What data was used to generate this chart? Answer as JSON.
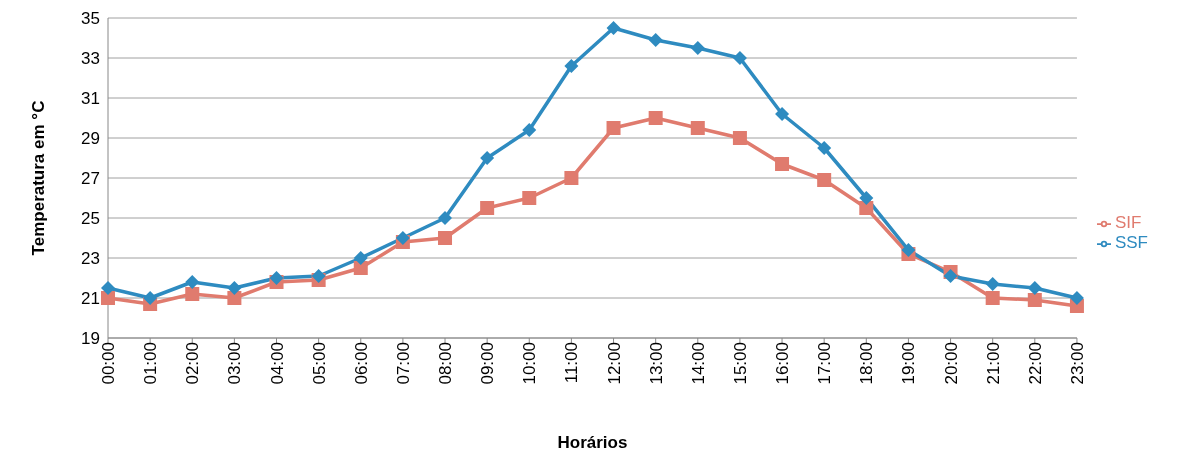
{
  "chart_data": {
    "type": "line",
    "ylabel": "Temperatura em °C",
    "xlabel": "Horários",
    "categories": [
      "00:00",
      "01:00",
      "02:00",
      "03:00",
      "04:00",
      "05:00",
      "06:00",
      "07:00",
      "08:00",
      "09:00",
      "10:00",
      "11:00",
      "12:00",
      "13:00",
      "14:00",
      "15:00",
      "16:00",
      "17:00",
      "18:00",
      "19:00",
      "20:00",
      "21:00",
      "22:00",
      "23:00"
    ],
    "series": [
      {
        "name": "SSF",
        "color": "#2e8bc0",
        "marker": "diamond",
        "values": [
          21.5,
          21.0,
          21.8,
          21.5,
          22.0,
          22.1,
          23.0,
          24.0,
          25.0,
          28.0,
          29.4,
          32.6,
          34.5,
          33.9,
          33.5,
          33.0,
          30.2,
          28.5,
          26.0,
          23.4,
          22.1,
          21.7,
          21.5,
          21.0
        ]
      },
      {
        "name": "SIF",
        "color": "#e07b6e",
        "marker": "square",
        "values": [
          21.0,
          20.7,
          21.2,
          21.0,
          21.8,
          21.9,
          22.5,
          23.8,
          24.0,
          25.5,
          26.0,
          27.0,
          29.5,
          30.0,
          29.5,
          29.0,
          27.7,
          26.9,
          25.5,
          23.2,
          22.3,
          21.0,
          20.9,
          20.6
        ]
      }
    ],
    "ylim": [
      19,
      35
    ],
    "yticks": [
      19,
      21,
      23,
      25,
      27,
      29,
      31,
      33,
      35
    ],
    "grid": "y",
    "legend": "right"
  }
}
